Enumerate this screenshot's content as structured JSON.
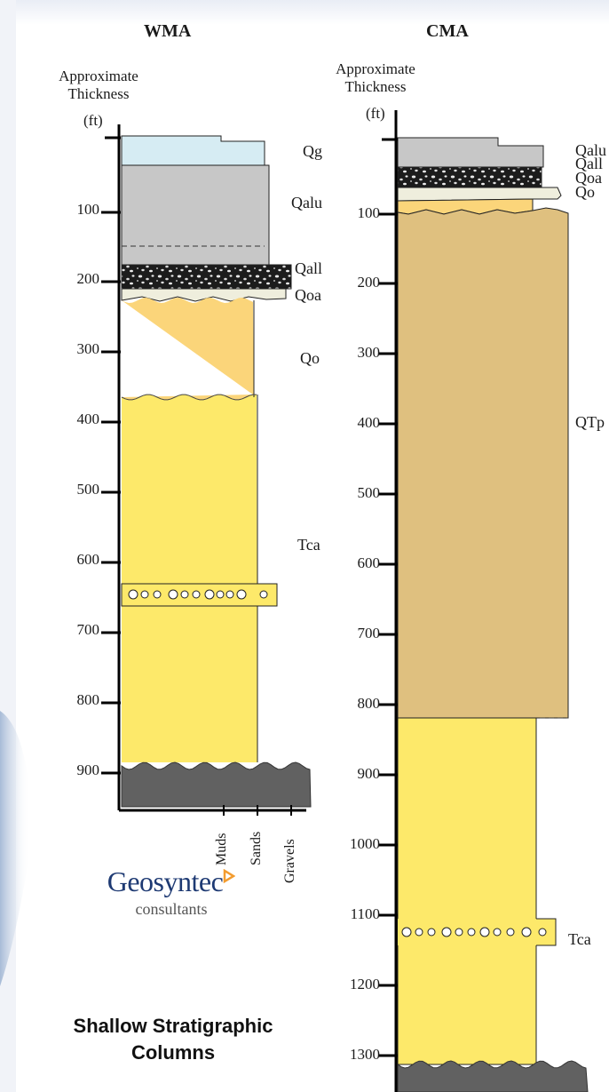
{
  "columns": [
    {
      "title": "WMA",
      "axis_title_line1": "Approximate",
      "axis_title_line2": "Thickness",
      "axis_unit": "(ft)",
      "ticks": [
        "100",
        "200",
        "300",
        "400",
        "500",
        "600",
        "700",
        "800",
        "900"
      ],
      "units": [
        {
          "label": "Qg",
          "color": "#d6ecf3"
        },
        {
          "label": "Qalu",
          "color": "#c7c7c7"
        },
        {
          "label": "Qall",
          "color": "#1a1a1a"
        },
        {
          "label": "Qoa",
          "color": "#efeedd"
        },
        {
          "label": "Qo",
          "color": "#fbd57a"
        },
        {
          "label": "Tca",
          "color": "#fde96a"
        }
      ],
      "basement_color": "#616161",
      "grain_labels": [
        "Muds",
        "Sands",
        "Gravels"
      ]
    },
    {
      "title": "CMA",
      "axis_title_line1": "Approximate",
      "axis_title_line2": "Thickness",
      "axis_unit": "(ft)",
      "ticks": [
        "100",
        "200",
        "300",
        "400",
        "500",
        "600",
        "700",
        "800",
        "900",
        "1000",
        "1100",
        "1200",
        "1300"
      ],
      "units": [
        {
          "label": "Qalu",
          "color": "#c7c7c7"
        },
        {
          "label": "Qall",
          "color": "#1a1a1a"
        },
        {
          "label": "Qoa",
          "color": "#efeedd"
        },
        {
          "label": "Qo",
          "color": "#fbd57a"
        },
        {
          "label": "QTp",
          "color": "#dfc07f"
        },
        {
          "label": "Tca",
          "color": "#fde96a"
        }
      ],
      "basement_color": "#616161"
    }
  ],
  "logo": {
    "name": "Geosyntec",
    "sub": "consultants",
    "mark_color": "#f39c2f"
  },
  "caption": {
    "line1": "Shallow Stratigraphic",
    "line2": "Columns"
  }
}
